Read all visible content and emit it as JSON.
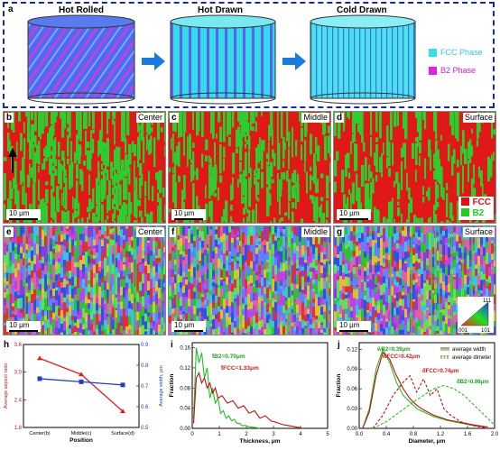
{
  "schematic": {
    "label": "a",
    "stages": [
      "Hot Rolled",
      "Hot Drawn",
      "Cold Drawn"
    ],
    "legend": [
      {
        "label": "FCC Phase",
        "color": "#33e0e8"
      },
      {
        "label": "B2 Phase",
        "color": "#e020e0"
      }
    ]
  },
  "phase_maps": {
    "panels": [
      {
        "label": "b",
        "position": "Center"
      },
      {
        "label": "c",
        "position": "Middle"
      },
      {
        "label": "d",
        "position": "Surface"
      }
    ],
    "scale_bar": "10 μm",
    "legend": [
      {
        "label": "FCC",
        "color": "#e01010"
      },
      {
        "label": "B2",
        "color": "#22cc22"
      }
    ]
  },
  "ipf_maps": {
    "panels": [
      {
        "label": "e",
        "position": "Center"
      },
      {
        "label": "f",
        "position": "Middle"
      },
      {
        "label": "g",
        "position": "Surface"
      }
    ],
    "scale_bar": "10 μm",
    "triangle_labels": [
      "111",
      "001",
      "101"
    ]
  },
  "chart_h": {
    "label": "h",
    "xlabel": "Position",
    "ylabel_left": "Average aspect ratio",
    "ylabel_right": "Average width, μm",
    "categories": [
      "Center(b)",
      "Middle(c)",
      "Surface(d)"
    ],
    "left_ticks": [
      "1.8",
      "2.4",
      "3.0",
      "3.6"
    ],
    "right_ticks": [
      "0.5",
      "0.6",
      "0.7",
      "0.8",
      "0.9"
    ],
    "chart_data": {
      "type": "line",
      "categories": [
        "Center(b)",
        "Middle(c)",
        "Surface(d)"
      ],
      "series": [
        {
          "axis": "left",
          "color": "#e02020",
          "values": [
            3.3,
            2.95,
            2.15
          ],
          "ylim": [
            1.8,
            3.6
          ]
        },
        {
          "axis": "right",
          "color": "#2040c0",
          "values": [
            0.735,
            0.72,
            0.705
          ],
          "ylim": [
            0.5,
            0.9
          ]
        }
      ]
    }
  },
  "chart_i": {
    "label": "i",
    "xlabel": "Thickness, μm",
    "ylabel": "Fraction",
    "x_ticks": [
      "0",
      "1",
      "2",
      "3",
      "4",
      "5"
    ],
    "y_ticks": [
      "0.00",
      "0.04",
      "0.08",
      "0.12",
      "0.16"
    ],
    "annotations": [
      {
        "text": "t̄B2=0.70μm",
        "color": "#20a020"
      },
      {
        "text": "t̄FCC=1.33μm",
        "color": "#c02020"
      }
    ],
    "chart_data": {
      "type": "line",
      "xlim": [
        0,
        5
      ],
      "ylim": [
        0,
        0.17
      ],
      "series": [
        {
          "color": "#20c020",
          "x": [
            0.05,
            0.15,
            0.25,
            0.35,
            0.45,
            0.55,
            0.65,
            0.75,
            0.85,
            0.95,
            1.05,
            1.15,
            1.25,
            1.35,
            1.45,
            1.55,
            1.65,
            1.75,
            1.85,
            1.95,
            2.1,
            2.3,
            2.5
          ],
          "y": [
            0.02,
            0.16,
            0.13,
            0.15,
            0.1,
            0.12,
            0.06,
            0.08,
            0.05,
            0.06,
            0.03,
            0.035,
            0.02,
            0.025,
            0.015,
            0.018,
            0.01,
            0.01,
            0.005,
            0.006,
            0.003,
            0.002,
            0.0
          ]
        },
        {
          "color": "#c01010",
          "x": [
            0.05,
            0.15,
            0.25,
            0.35,
            0.45,
            0.55,
            0.65,
            0.75,
            0.85,
            0.95,
            1.1,
            1.3,
            1.5,
            1.7,
            1.9,
            2.1,
            2.3,
            2.5,
            2.7,
            2.9,
            3.1,
            3.3,
            3.5,
            3.8,
            4.1
          ],
          "y": [
            0.01,
            0.1,
            0.11,
            0.09,
            0.1,
            0.08,
            0.09,
            0.07,
            0.08,
            0.06,
            0.065,
            0.05,
            0.055,
            0.04,
            0.045,
            0.03,
            0.035,
            0.02,
            0.025,
            0.015,
            0.012,
            0.008,
            0.006,
            0.003,
            0.0
          ]
        }
      ]
    }
  },
  "chart_j": {
    "label": "j",
    "xlabel": "Diameter, μm",
    "ylabel": "Fraction",
    "x_ticks": [
      "0.0",
      "0.4",
      "0.8",
      "1.2",
      "1.6",
      "2.0"
    ],
    "y_ticks": [
      "0.00",
      "0.03",
      "0.06",
      "0.09",
      "0.12"
    ],
    "legend": [
      {
        "label": "average width",
        "style": "solid"
      },
      {
        "label": "average dimeter",
        "style": "dashed"
      }
    ],
    "annotations": [
      {
        "text": "w̄B2=0.39μm",
        "color": "#20a020"
      },
      {
        "text": "w̄FCC=0.42μm",
        "color": "#c02020"
      },
      {
        "text": "d̄FCC=0.74μm",
        "color": "#c02020"
      },
      {
        "text": "d̄B2=0.98μm",
        "color": "#20a020"
      }
    ],
    "chart_data": {
      "type": "line",
      "xlim": [
        0,
        2.0
      ],
      "ylim": [
        0,
        0.13
      ],
      "series": [
        {
          "name": "average width",
          "color": "#20c020",
          "style": "solid",
          "x": [
            0.05,
            0.15,
            0.25,
            0.35,
            0.45,
            0.55,
            0.65,
            0.75,
            0.85,
            0.95,
            1.1,
            1.3,
            1.5,
            1.7,
            1.9
          ],
          "y": [
            0.0,
            0.03,
            0.09,
            0.12,
            0.1,
            0.07,
            0.05,
            0.04,
            0.03,
            0.025,
            0.018,
            0.012,
            0.008,
            0.004,
            0.002
          ]
        },
        {
          "name": "average width",
          "color": "#c01010",
          "style": "solid",
          "x": [
            0.05,
            0.15,
            0.25,
            0.35,
            0.45,
            0.55,
            0.65,
            0.75,
            0.85,
            0.95,
            1.1,
            1.3,
            1.5,
            1.7,
            1.9
          ],
          "y": [
            0.0,
            0.025,
            0.08,
            0.115,
            0.105,
            0.08,
            0.06,
            0.045,
            0.035,
            0.028,
            0.02,
            0.013,
            0.009,
            0.005,
            0.002
          ]
        },
        {
          "name": "average dimeter",
          "color": "#c01010",
          "style": "dashed",
          "x": [
            0.2,
            0.35,
            0.5,
            0.65,
            0.75,
            0.85,
            0.95,
            1.05,
            1.15,
            1.25,
            1.35,
            1.5,
            1.7,
            1.9
          ],
          "y": [
            0.0,
            0.02,
            0.05,
            0.07,
            0.08,
            0.055,
            0.075,
            0.05,
            0.06,
            0.03,
            0.02,
            0.01,
            0.004,
            0.0
          ]
        },
        {
          "name": "average dimeter",
          "color": "#20c020",
          "style": "dashed",
          "x": [
            0.2,
            0.4,
            0.6,
            0.8,
            0.95,
            1.1,
            1.25,
            1.4,
            1.55,
            1.7,
            1.85,
            2.0
          ],
          "y": [
            0.0,
            0.01,
            0.025,
            0.04,
            0.05,
            0.06,
            0.065,
            0.06,
            0.05,
            0.035,
            0.02,
            0.005
          ]
        }
      ]
    }
  }
}
